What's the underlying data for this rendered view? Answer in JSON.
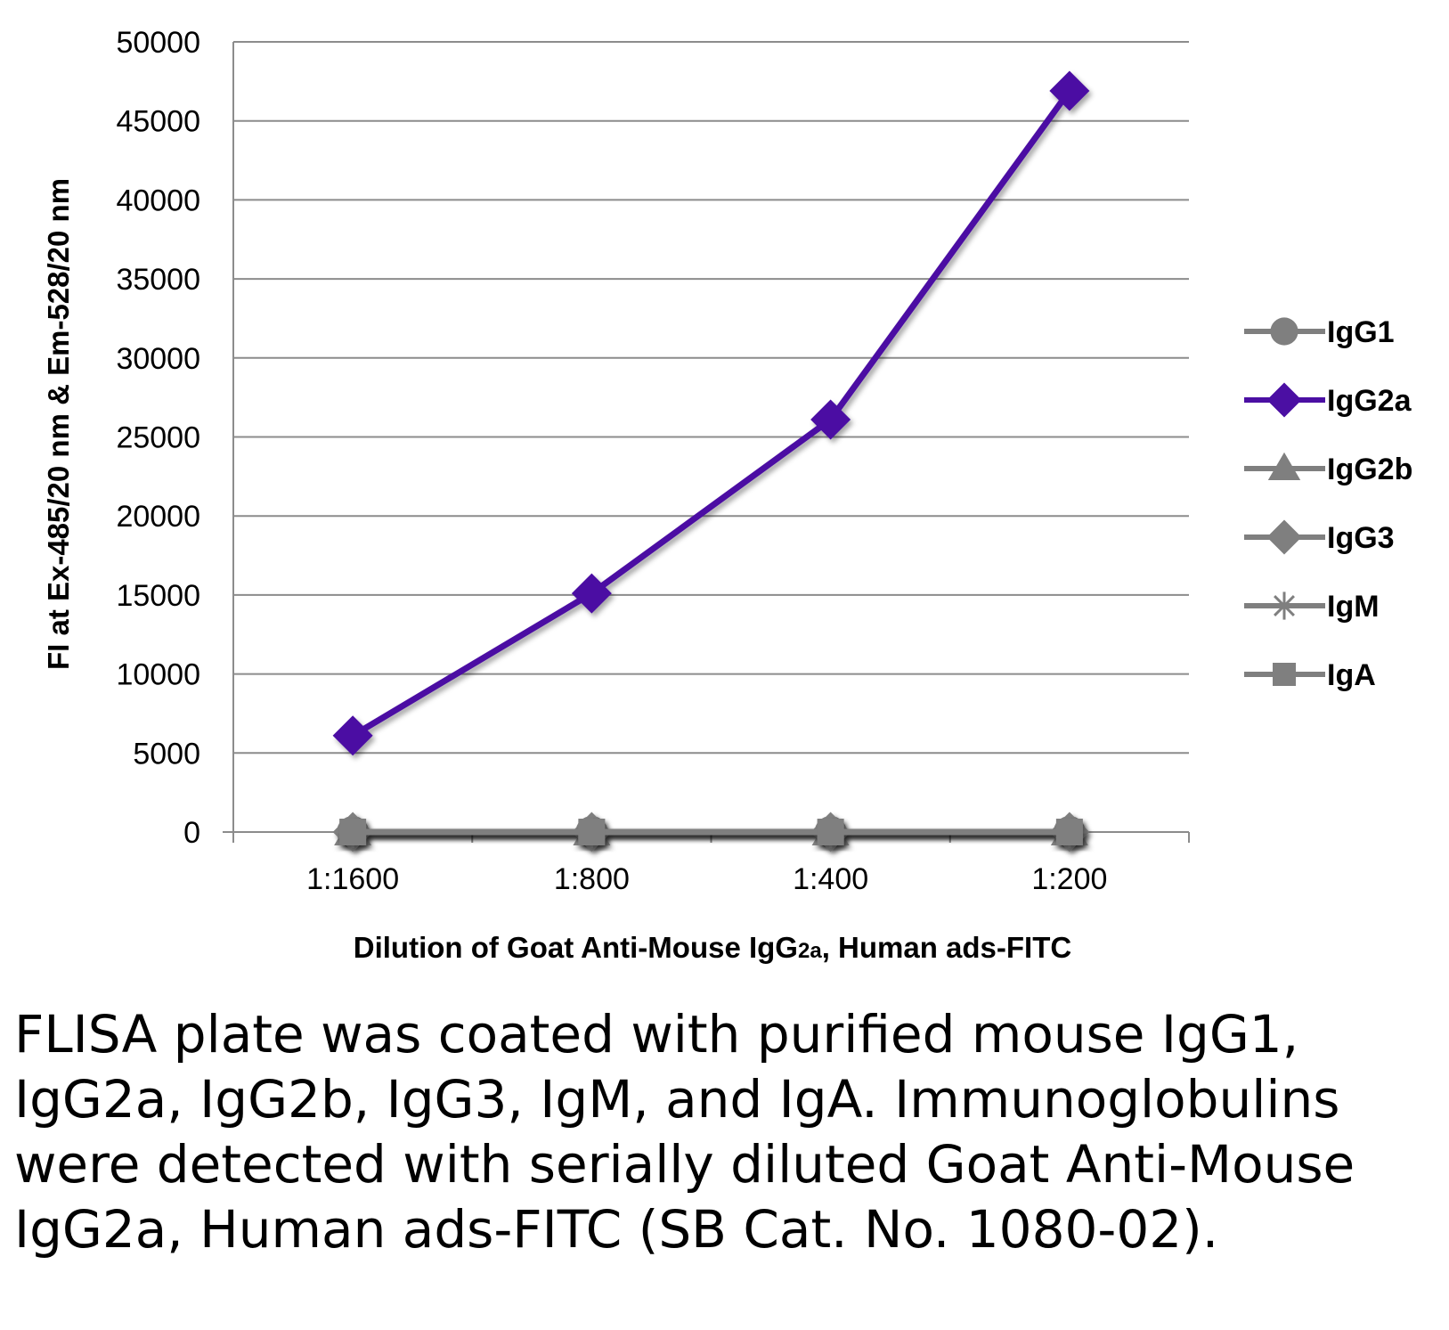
{
  "chart_data": {
    "type": "line",
    "categories": [
      "1:1600",
      "1:800",
      "1:400",
      "1:200"
    ],
    "yticks": [
      "0",
      "5000",
      "10000",
      "15000",
      "20000",
      "25000",
      "30000",
      "35000",
      "40000",
      "45000",
      "50000"
    ],
    "ylim": [
      0,
      50000
    ],
    "grid": true,
    "legend_position": "right",
    "ylabel": "FI at Ex-485/20 nm & Em-528/20 nm",
    "xlabel_parts": {
      "before": "Dilution of Goat Anti-Mouse IgG",
      "subscript": "2a",
      "after": ", Human ads-FITC"
    },
    "series": [
      {
        "name": "IgG1",
        "marker": "circle",
        "color": "#7f7f7f",
        "values": [
          0,
          0,
          0,
          0
        ]
      },
      {
        "name": "IgG2a",
        "marker": "diamond",
        "color": "#4b0fa3",
        "values": [
          6100,
          15100,
          26100,
          46900
        ]
      },
      {
        "name": "IgG2b",
        "marker": "triangle",
        "color": "#7f7f7f",
        "values": [
          0,
          0,
          0,
          0
        ]
      },
      {
        "name": "IgG3",
        "marker": "diamond",
        "color": "#7f7f7f",
        "values": [
          0,
          0,
          0,
          0
        ]
      },
      {
        "name": "IgM",
        "marker": "star",
        "color": "#7f7f7f",
        "values": [
          0,
          0,
          0,
          0
        ]
      },
      {
        "name": "IgA",
        "marker": "square",
        "color": "#7f7f7f",
        "values": [
          0,
          0,
          0,
          0
        ]
      }
    ]
  },
  "caption": "FLISA plate was coated with purified mouse IgG1, IgG2a, IgG2b, IgG3, IgM, and IgA. Immunoglobulins were detected with serially diluted Goat Anti-Mouse IgG2a, Human ads-FITC (SB Cat. No. 1080-02)."
}
